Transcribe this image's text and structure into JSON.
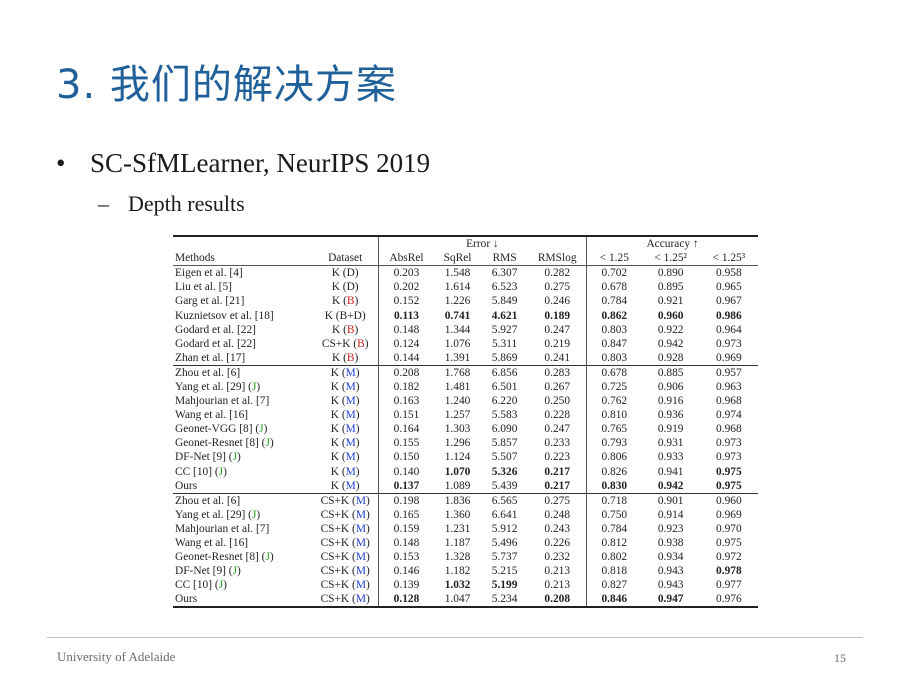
{
  "slide": {
    "title": "3. 我们的解决方案",
    "bullet": "SC-SfMLearner, NeurIPS 2019",
    "bullet_marker": "•",
    "subbullet": "Depth results",
    "subbullet_marker": "–"
  },
  "table": {
    "group_headers": {
      "error": "Error ↓",
      "accuracy": "Accuracy ↑"
    },
    "columns": [
      "Methods",
      "Dataset",
      "AbsRel",
      "SqRel",
      "RMS",
      "RMSlog",
      "< 1.25",
      "< 1.25²",
      "< 1.25³"
    ],
    "rows": [
      {
        "method": "Eigen et al. [4]",
        "ds": [
          [
            "K (D)",
            ""
          ]
        ],
        "v": [
          "0.203",
          "1.548",
          "6.307",
          "0.282",
          "0.702",
          "0.890",
          "0.958"
        ],
        "bold": []
      },
      {
        "method": "Liu et al. [5]",
        "ds": [
          [
            "K (D)",
            ""
          ]
        ],
        "v": [
          "0.202",
          "1.614",
          "6.523",
          "0.275",
          "0.678",
          "0.895",
          "0.965"
        ],
        "bold": []
      },
      {
        "method": "Garg et al. [21]",
        "ds": [
          [
            "K (",
            ""
          ],
          [
            "B",
            "red"
          ],
          [
            ")",
            ""
          ]
        ],
        "v": [
          "0.152",
          "1.226",
          "5.849",
          "0.246",
          "0.784",
          "0.921",
          "0.967"
        ],
        "bold": []
      },
      {
        "method": "Kuznietsov et al. [18]",
        "ds": [
          [
            "K (B+D)",
            ""
          ]
        ],
        "v": [
          "0.113",
          "0.741",
          "4.621",
          "0.189",
          "0.862",
          "0.960",
          "0.986"
        ],
        "bold": [
          0,
          1,
          2,
          3,
          4,
          5,
          6
        ]
      },
      {
        "method": "Godard et al. [22]",
        "ds": [
          [
            "K (",
            ""
          ],
          [
            "B",
            "red"
          ],
          [
            ")",
            ""
          ]
        ],
        "v": [
          "0.148",
          "1.344",
          "5.927",
          "0.247",
          "0.803",
          "0.922",
          "0.964"
        ],
        "bold": []
      },
      {
        "method": "Godard et al. [22]",
        "ds": [
          [
            "CS+K (",
            ""
          ],
          [
            "B",
            "red"
          ],
          [
            ")",
            ""
          ]
        ],
        "v": [
          "0.124",
          "1.076",
          "5.311",
          "0.219",
          "0.847",
          "0.942",
          "0.973"
        ],
        "bold": []
      },
      {
        "method": "Zhan et al. [17]",
        "ds": [
          [
            "K (",
            ""
          ],
          [
            "B",
            "red"
          ],
          [
            ")",
            ""
          ]
        ],
        "v": [
          "0.144",
          "1.391",
          "5.869",
          "0.241",
          "0.803",
          "0.928",
          "0.969"
        ],
        "bold": []
      },
      {
        "method": "Zhou et al. [6]",
        "ds": [
          [
            "K (",
            ""
          ],
          [
            "M",
            "blue"
          ],
          [
            ")",
            ""
          ]
        ],
        "v": [
          "0.208",
          "1.768",
          "6.856",
          "0.283",
          "0.678",
          "0.885",
          "0.957"
        ],
        "bold": [],
        "group_start": true
      },
      {
        "method": "Yang et al. [29] (",
        "mj": true,
        "ds": [
          [
            "K (",
            ""
          ],
          [
            "M",
            "blue"
          ],
          [
            ")",
            ""
          ]
        ],
        "v": [
          "0.182",
          "1.481",
          "6.501",
          "0.267",
          "0.725",
          "0.906",
          "0.963"
        ],
        "bold": []
      },
      {
        "method": "Mahjourian et al. [7]",
        "ds": [
          [
            "K (",
            ""
          ],
          [
            "M",
            "blue"
          ],
          [
            ")",
            ""
          ]
        ],
        "v": [
          "0.163",
          "1.240",
          "6.220",
          "0.250",
          "0.762",
          "0.916",
          "0.968"
        ],
        "bold": []
      },
      {
        "method": "Wang et al. [16]",
        "ds": [
          [
            "K (",
            ""
          ],
          [
            "M",
            "blue"
          ],
          [
            ")",
            ""
          ]
        ],
        "v": [
          "0.151",
          "1.257",
          "5.583",
          "0.228",
          "0.810",
          "0.936",
          "0.974"
        ],
        "bold": []
      },
      {
        "method": "Geonet-VGG [8] (",
        "mj": true,
        "ds": [
          [
            "K (",
            ""
          ],
          [
            "M",
            "blue"
          ],
          [
            ")",
            ""
          ]
        ],
        "v": [
          "0.164",
          "1.303",
          "6.090",
          "0.247",
          "0.765",
          "0.919",
          "0.968"
        ],
        "bold": []
      },
      {
        "method": "Geonet-Resnet [8] (",
        "mj": true,
        "ds": [
          [
            "K (",
            ""
          ],
          [
            "M",
            "blue"
          ],
          [
            ")",
            ""
          ]
        ],
        "v": [
          "0.155",
          "1.296",
          "5.857",
          "0.233",
          "0.793",
          "0.931",
          "0.973"
        ],
        "bold": []
      },
      {
        "method": "DF-Net [9] (",
        "mj": true,
        "ds": [
          [
            "K (",
            ""
          ],
          [
            "M",
            "blue"
          ],
          [
            ")",
            ""
          ]
        ],
        "v": [
          "0.150",
          "1.124",
          "5.507",
          "0.223",
          "0.806",
          "0.933",
          "0.973"
        ],
        "bold": []
      },
      {
        "method": "CC [10] (",
        "mj": true,
        "ds": [
          [
            "K (",
            ""
          ],
          [
            "M",
            "blue"
          ],
          [
            ")",
            ""
          ]
        ],
        "v": [
          "0.140",
          "1.070",
          "5.326",
          "0.217",
          "0.826",
          "0.941",
          "0.975"
        ],
        "bold": [
          1,
          2,
          3,
          6
        ]
      },
      {
        "method": "Ours",
        "ds": [
          [
            "K (",
            ""
          ],
          [
            "M",
            "blue"
          ],
          [
            ")",
            ""
          ]
        ],
        "v": [
          "0.137",
          "1.089",
          "5.439",
          "0.217",
          "0.830",
          "0.942",
          "0.975"
        ],
        "bold": [
          0,
          3,
          4,
          5,
          6
        ]
      },
      {
        "method": "Zhou et al. [6]",
        "ds": [
          [
            "CS+K (",
            ""
          ],
          [
            "M",
            "blue"
          ],
          [
            ")",
            ""
          ]
        ],
        "v": [
          "0.198",
          "1.836",
          "6.565",
          "0.275",
          "0.718",
          "0.901",
          "0.960"
        ],
        "bold": [],
        "group_start": true
      },
      {
        "method": "Yang et al. [29] (",
        "mj": true,
        "ds": [
          [
            "CS+K (",
            ""
          ],
          [
            "M",
            "blue"
          ],
          [
            ")",
            ""
          ]
        ],
        "v": [
          "0.165",
          "1.360",
          "6.641",
          "0.248",
          "0.750",
          "0.914",
          "0.969"
        ],
        "bold": []
      },
      {
        "method": "Mahjourian et al. [7]",
        "ds": [
          [
            "CS+K (",
            ""
          ],
          [
            "M",
            "blue"
          ],
          [
            ")",
            ""
          ]
        ],
        "v": [
          "0.159",
          "1.231",
          "5.912",
          "0.243",
          "0.784",
          "0.923",
          "0.970"
        ],
        "bold": []
      },
      {
        "method": "Wang et al. [16]",
        "ds": [
          [
            "CS+K (",
            ""
          ],
          [
            "M",
            "blue"
          ],
          [
            ")",
            ""
          ]
        ],
        "v": [
          "0.148",
          "1.187",
          "5.496",
          "0.226",
          "0.812",
          "0.938",
          "0.975"
        ],
        "bold": []
      },
      {
        "method": "Geonet-Resnet [8] (",
        "mj": true,
        "ds": [
          [
            "CS+K (",
            ""
          ],
          [
            "M",
            "blue"
          ],
          [
            ")",
            ""
          ]
        ],
        "v": [
          "0.153",
          "1.328",
          "5.737",
          "0.232",
          "0.802",
          "0.934",
          "0.972"
        ],
        "bold": []
      },
      {
        "method": "DF-Net [9] (",
        "mj": true,
        "ds": [
          [
            "CS+K (",
            ""
          ],
          [
            "M",
            "blue"
          ],
          [
            ")",
            ""
          ]
        ],
        "v": [
          "0.146",
          "1.182",
          "5.215",
          "0.213",
          "0.818",
          "0.943",
          "0.978"
        ],
        "bold": [
          6
        ]
      },
      {
        "method": "CC [10] (",
        "mj": true,
        "ds": [
          [
            "CS+K (",
            ""
          ],
          [
            "M",
            "blue"
          ],
          [
            ")",
            ""
          ]
        ],
        "v": [
          "0.139",
          "1.032",
          "5.199",
          "0.213",
          "0.827",
          "0.943",
          "0.977"
        ],
        "bold": [
          1,
          2
        ]
      },
      {
        "method": "Ours",
        "ds": [
          [
            "CS+K (",
            ""
          ],
          [
            "M",
            "blue"
          ],
          [
            ")",
            ""
          ]
        ],
        "v": [
          "0.128",
          "1.047",
          "5.234",
          "0.208",
          "0.846",
          "0.947",
          "0.976"
        ],
        "bold": [
          0,
          3,
          4,
          5
        ],
        "last": true
      }
    ],
    "mj_letter": "J",
    "mj_close": ")"
  },
  "colors": {
    "title": "#1f5f9a",
    "B": "#d02020",
    "M": "#2040d0",
    "J": "#20a020"
  },
  "footer": {
    "left": "University of Adelaide",
    "page": "15"
  }
}
